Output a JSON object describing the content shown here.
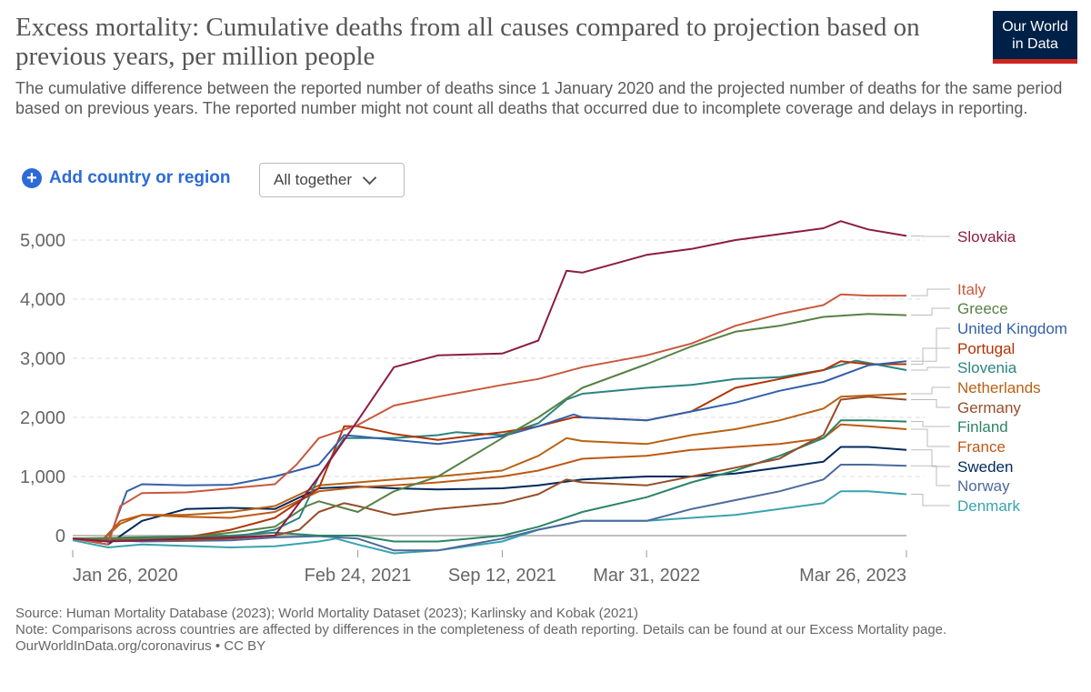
{
  "header": {
    "title": "Excess mortality: Cumulative deaths from all causes compared to projection based on previous years, per million people",
    "subtitle": "The cumulative difference between the reported number of deaths since 1 January 2020 and the projected number of deaths for the same period based on previous years. The reported number might not count all deaths that occurred due to incomplete coverage and delays in reporting.",
    "logo_line1": "Our World",
    "logo_line2": "in Data"
  },
  "controls": {
    "add_label": "Add country or region",
    "add_icon": "plus-circle-icon",
    "select_value": "All together",
    "select_icon": "chevron-down-icon"
  },
  "chart_data": {
    "type": "line",
    "title": "",
    "xlabel": "",
    "ylabel": "",
    "ylim": [
      -300,
      5300
    ],
    "xlim": [
      "2020-01-26",
      "2023-03-26"
    ],
    "y_ticks": [
      0,
      1000,
      2000,
      3000,
      4000,
      5000
    ],
    "y_tick_labels": [
      "0",
      "1,000",
      "2,000",
      "3,000",
      "4,000",
      "5,000"
    ],
    "x_ticks": [
      "2020-01-26",
      "2021-02-24",
      "2021-09-12",
      "2022-03-31",
      "2023-03-26"
    ],
    "x_tick_labels": [
      "Jan 26, 2020",
      "Feb 24, 2021",
      "Sep 12, 2021",
      "Mar 31, 2022",
      "Mar 26, 2023"
    ],
    "grid": "horizontal dashed",
    "legend": "right, end-of-line labels",
    "series": [
      {
        "name": "Slovakia",
        "color": "#8c1c44",
        "x": [
          "2020-01-26",
          "2020-03-15",
          "2020-05-01",
          "2020-07-01",
          "2020-09-01",
          "2020-11-01",
          "2021-01-01",
          "2021-02-24",
          "2021-04-15",
          "2021-06-15",
          "2021-09-12",
          "2021-11-01",
          "2021-12-10",
          "2022-01-01",
          "2022-03-31",
          "2022-06-01",
          "2022-08-01",
          "2022-10-01",
          "2022-12-01",
          "2022-12-25",
          "2023-02-01",
          "2023-03-26"
        ],
        "y": [
          -50,
          -100,
          -80,
          -50,
          -30,
          0,
          1000,
          1950,
          2850,
          3050,
          3080,
          3300,
          4480,
          4450,
          4750,
          4850,
          5000,
          5100,
          5200,
          5320,
          5180,
          5070
        ]
      },
      {
        "name": "Italy",
        "color": "#c8593d",
        "x": [
          "2020-01-26",
          "2020-03-15",
          "2020-04-01",
          "2020-05-01",
          "2020-07-01",
          "2020-09-01",
          "2020-11-01",
          "2020-12-01",
          "2021-01-01",
          "2021-02-24",
          "2021-04-15",
          "2021-06-15",
          "2021-09-12",
          "2021-11-01",
          "2022-01-01",
          "2022-03-31",
          "2022-06-01",
          "2022-08-01",
          "2022-10-01",
          "2022-12-01",
          "2022-12-25",
          "2023-02-01",
          "2023-03-26"
        ],
        "y": [
          -50,
          -150,
          500,
          720,
          730,
          800,
          870,
          1200,
          1650,
          1870,
          2200,
          2350,
          2550,
          2650,
          2850,
          3050,
          3250,
          3550,
          3750,
          3900,
          4080,
          4060,
          4060
        ]
      },
      {
        "name": "Greece",
        "color": "#578145",
        "x": [
          "2020-01-26",
          "2020-05-01",
          "2020-07-01",
          "2020-09-01",
          "2020-11-01",
          "2020-12-15",
          "2021-01-01",
          "2021-02-24",
          "2021-04-15",
          "2021-06-15",
          "2021-09-12",
          "2021-11-01",
          "2022-01-01",
          "2022-03-31",
          "2022-06-01",
          "2022-08-01",
          "2022-10-01",
          "2022-12-01",
          "2023-02-01",
          "2023-03-26"
        ],
        "y": [
          -50,
          -50,
          -30,
          50,
          150,
          500,
          580,
          400,
          750,
          1000,
          1650,
          2000,
          2500,
          2900,
          3200,
          3450,
          3550,
          3700,
          3750,
          3730
        ]
      },
      {
        "name": "United Kingdom",
        "color": "#3360a9",
        "x": [
          "2020-01-26",
          "2020-03-15",
          "2020-04-10",
          "2020-05-01",
          "2020-07-01",
          "2020-09-01",
          "2020-11-01",
          "2021-01-01",
          "2021-02-05",
          "2021-02-24",
          "2021-04-15",
          "2021-06-15",
          "2021-09-12",
          "2021-11-01",
          "2021-12-20",
          "2022-01-01",
          "2022-03-31",
          "2022-06-01",
          "2022-08-01",
          "2022-10-01",
          "2022-12-01",
          "2023-02-01",
          "2023-03-26"
        ],
        "y": [
          -50,
          -100,
          750,
          870,
          850,
          860,
          1000,
          1200,
          1700,
          1680,
          1620,
          1550,
          1680,
          1850,
          2050,
          2000,
          1950,
          2100,
          2250,
          2450,
          2600,
          2880,
          2950
        ]
      },
      {
        "name": "Portugal",
        "color": "#b13507",
        "x": [
          "2020-01-26",
          "2020-05-01",
          "2020-07-01",
          "2020-09-01",
          "2020-11-01",
          "2021-01-01",
          "2021-02-05",
          "2021-02-24",
          "2021-04-15",
          "2021-06-15",
          "2021-09-12",
          "2021-11-01",
          "2021-12-20",
          "2022-01-01",
          "2022-03-31",
          "2022-06-01",
          "2022-08-01",
          "2022-10-01",
          "2022-12-01",
          "2022-12-25",
          "2023-02-01",
          "2023-03-26"
        ],
        "y": [
          -50,
          -50,
          -30,
          100,
          300,
          800,
          1850,
          1850,
          1720,
          1620,
          1750,
          1850,
          2000,
          2000,
          1950,
          2100,
          2500,
          2650,
          2800,
          2950,
          2900,
          2900
        ]
      },
      {
        "name": "Slovenia",
        "color": "#2a8480",
        "x": [
          "2020-01-26",
          "2020-05-01",
          "2020-09-01",
          "2020-11-01",
          "2020-12-05",
          "2021-01-01",
          "2021-02-05",
          "2021-02-24",
          "2021-04-15",
          "2021-06-15",
          "2021-07-10",
          "2021-09-12",
          "2021-11-01",
          "2021-12-10",
          "2022-01-01",
          "2022-03-31",
          "2022-06-01",
          "2022-08-01",
          "2022-10-01",
          "2022-12-01",
          "2023-01-15",
          "2023-03-26"
        ],
        "y": [
          -50,
          -50,
          -30,
          100,
          300,
          1000,
          1650,
          1650,
          1650,
          1700,
          1750,
          1700,
          1900,
          2300,
          2400,
          2500,
          2550,
          2650,
          2680,
          2800,
          2960,
          2800
        ]
      },
      {
        "name": "Netherlands",
        "color": "#b86113",
        "x": [
          "2020-01-26",
          "2020-03-05",
          "2020-04-01",
          "2020-05-01",
          "2020-07-01",
          "2020-09-01",
          "2020-11-01",
          "2021-01-01",
          "2021-02-24",
          "2021-04-15",
          "2021-06-15",
          "2021-09-12",
          "2021-11-01",
          "2021-12-10",
          "2022-01-01",
          "2022-03-31",
          "2022-06-01",
          "2022-08-01",
          "2022-10-01",
          "2022-12-01",
          "2022-12-25",
          "2023-03-26"
        ],
        "y": [
          -50,
          -100,
          200,
          350,
          350,
          400,
          500,
          850,
          900,
          950,
          1000,
          1100,
          1350,
          1650,
          1600,
          1550,
          1700,
          1800,
          1950,
          2150,
          2350,
          2400
        ]
      },
      {
        "name": "Germany",
        "color": "#974d28",
        "x": [
          "2020-01-26",
          "2020-07-01",
          "2020-09-01",
          "2020-11-01",
          "2020-12-05",
          "2021-01-01",
          "2021-02-05",
          "2021-02-24",
          "2021-04-15",
          "2021-06-15",
          "2021-09-12",
          "2021-11-01",
          "2021-12-10",
          "2022-01-01",
          "2022-03-31",
          "2022-06-01",
          "2022-08-01",
          "2022-10-01",
          "2022-10-30",
          "2022-12-01",
          "2022-12-25",
          "2023-02-01",
          "2023-03-26"
        ],
        "y": [
          -50,
          -80,
          -50,
          0,
          100,
          400,
          550,
          500,
          350,
          450,
          550,
          700,
          950,
          900,
          850,
          1000,
          1150,
          1300,
          1500,
          1700,
          2300,
          2350,
          2300
        ]
      },
      {
        "name": "Finland",
        "color": "#2c8465",
        "x": [
          "2020-01-26",
          "2020-09-01",
          "2020-11-01",
          "2021-01-01",
          "2021-02-24",
          "2021-04-15",
          "2021-06-15",
          "2021-09-12",
          "2021-11-01",
          "2022-01-01",
          "2022-03-31",
          "2022-06-01",
          "2022-08-01",
          "2022-10-01",
          "2022-12-01",
          "2022-12-25",
          "2023-02-01",
          "2023-03-26"
        ],
        "y": [
          -50,
          0,
          50,
          0,
          0,
          -100,
          -100,
          0,
          150,
          400,
          650,
          900,
          1100,
          1350,
          1650,
          1950,
          1950,
          1930
        ]
      },
      {
        "name": "France",
        "color": "#be5915",
        "x": [
          "2020-01-26",
          "2020-03-05",
          "2020-04-01",
          "2020-05-01",
          "2020-07-01",
          "2020-09-01",
          "2020-11-01",
          "2021-01-01",
          "2021-02-24",
          "2021-04-15",
          "2021-06-15",
          "2021-09-12",
          "2021-11-01",
          "2022-01-01",
          "2022-03-31",
          "2022-06-01",
          "2022-08-01",
          "2022-10-01",
          "2022-12-01",
          "2022-12-25",
          "2023-02-01",
          "2023-03-26"
        ],
        "y": [
          -50,
          -100,
          250,
          350,
          320,
          300,
          400,
          750,
          820,
          850,
          900,
          1000,
          1100,
          1300,
          1350,
          1450,
          1500,
          1550,
          1650,
          1880,
          1850,
          1800
        ]
      },
      {
        "name": "Sweden",
        "color": "#00295b",
        "x": [
          "2020-01-26",
          "2020-03-15",
          "2020-05-01",
          "2020-07-01",
          "2020-09-01",
          "2020-11-01",
          "2021-01-01",
          "2021-02-24",
          "2021-04-15",
          "2021-06-15",
          "2021-09-12",
          "2021-11-01",
          "2022-01-01",
          "2022-03-31",
          "2022-06-01",
          "2022-08-01",
          "2022-10-01",
          "2022-12-01",
          "2022-12-25",
          "2023-02-01",
          "2023-03-26"
        ],
        "y": [
          -50,
          -150,
          250,
          450,
          470,
          450,
          800,
          830,
          800,
          780,
          800,
          850,
          950,
          1000,
          1000,
          1050,
          1150,
          1250,
          1500,
          1500,
          1450
        ]
      },
      {
        "name": "Norway",
        "color": "#4c6a9c",
        "x": [
          "2020-01-26",
          "2020-05-01",
          "2020-09-01",
          "2020-11-01",
          "2021-01-01",
          "2021-02-24",
          "2021-04-15",
          "2021-06-15",
          "2021-09-12",
          "2021-11-01",
          "2022-01-01",
          "2022-03-31",
          "2022-06-01",
          "2022-08-01",
          "2022-10-01",
          "2022-12-01",
          "2022-12-25",
          "2023-02-01",
          "2023-03-26"
        ],
        "y": [
          -50,
          -100,
          -80,
          -30,
          -10,
          -50,
          -250,
          -250,
          -50,
          100,
          250,
          250,
          450,
          600,
          750,
          950,
          1200,
          1200,
          1180
        ]
      },
      {
        "name": "Denmark",
        "color": "#38a3ae",
        "x": [
          "2020-01-26",
          "2020-03-15",
          "2020-05-01",
          "2020-09-01",
          "2020-11-01",
          "2021-01-01",
          "2021-01-25",
          "2021-02-24",
          "2021-04-15",
          "2021-06-15",
          "2021-09-12",
          "2021-11-01",
          "2022-01-01",
          "2022-03-31",
          "2022-06-01",
          "2022-08-01",
          "2022-10-01",
          "2022-12-01",
          "2022-12-25",
          "2023-02-01",
          "2023-03-26"
        ],
        "y": [
          -80,
          -200,
          -150,
          -200,
          -180,
          -100,
          -50,
          -150,
          -300,
          -250,
          -100,
          100,
          250,
          250,
          300,
          350,
          450,
          550,
          750,
          750,
          700
        ]
      }
    ]
  },
  "footer": {
    "source": "Source: Human Mortality Database (2023); World Mortality Dataset (2023); Karlinsky and Kobak (2021)",
    "note": "Note: Comparisons across countries are affected by differences in the completeness of death reporting. Details can be found at our Excess Mortality page.",
    "url_license": "OurWorldInData.org/coronavirus • CC BY"
  }
}
